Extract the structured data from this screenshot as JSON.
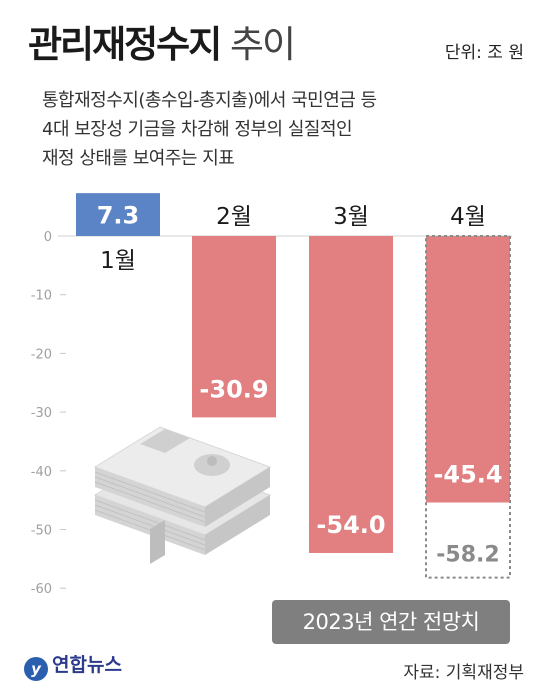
{
  "header": {
    "title_bold": "관리재정수지",
    "title_light": "추이",
    "unit": "단위: 조 원",
    "description": [
      "통합재정수지(총수입-총지출)에서 국민연금 등",
      "4대 보장성 기금을 차감해 정부의 실질적인",
      "재정 상태를 보여주는 지표"
    ]
  },
  "chart_data": {
    "type": "bar",
    "categories": [
      "1월",
      "2월",
      "3월",
      "4월"
    ],
    "values": [
      7.3,
      -30.9,
      -54.0,
      -45.4
    ],
    "value_labels": [
      "7.3",
      "-30.9",
      "-54.0",
      "-45.4"
    ],
    "projection": {
      "category": "4월",
      "value": -58.2,
      "label": "-58.2",
      "note": "2023년 연간 전망치"
    },
    "y_ticks": [
      0,
      -10,
      -20,
      -30,
      -40,
      -50,
      -60
    ],
    "ylim": [
      -60,
      7.3
    ],
    "colors": {
      "positive": "#5b84c6",
      "negative": "#e17f81",
      "projection_border": "#8a8a8a"
    }
  },
  "footer": {
    "logo": "연합뉴스",
    "source": "자료: 기획재정부"
  }
}
